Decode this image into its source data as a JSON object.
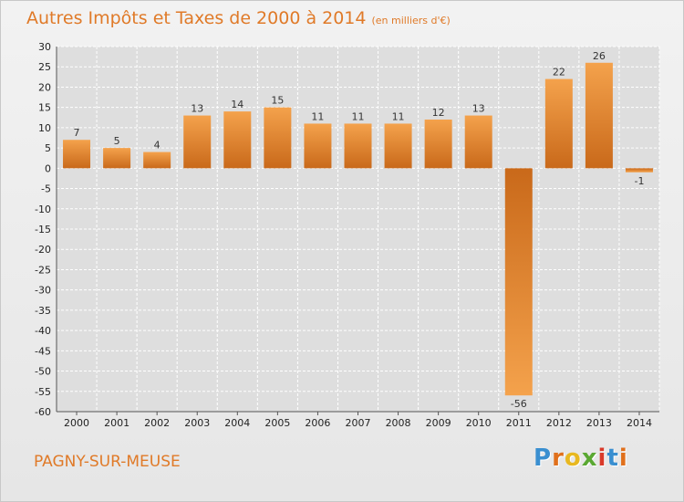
{
  "header": {
    "title": "Autres Impôts et Taxes de 2000 à 2014",
    "unit": "(en milliers d'€)"
  },
  "footer": {
    "commune": "PAGNY-SUR-MEUSE",
    "logo_letters": [
      "P",
      "r",
      "o",
      "x",
      "i",
      "t",
      "i"
    ],
    "logo_colors": [
      "#3a8fd0",
      "#e0701c",
      "#e8b820",
      "#5aa832",
      "#d93a2a",
      "#3a8fd0",
      "#e0701c"
    ]
  },
  "colors": {
    "bar_light": "#f4a24c",
    "bar_dark": "#c9691a",
    "grid": "#ffffff",
    "plot_bg": "#dedede",
    "accent": "#e07a28"
  },
  "chart_data": {
    "type": "bar",
    "categories": [
      "2000",
      "2001",
      "2002",
      "2003",
      "2004",
      "2005",
      "2006",
      "2007",
      "2008",
      "2009",
      "2010",
      "2011",
      "2012",
      "2013",
      "2014"
    ],
    "values": [
      7,
      5,
      4,
      13,
      14,
      15,
      11,
      11,
      11,
      12,
      13,
      -56,
      22,
      26,
      -1
    ],
    "data_labels": [
      "7",
      "5",
      "4",
      "13",
      "14",
      "15",
      "11",
      "11",
      "11",
      "12",
      "13",
      "-56",
      "22",
      "26",
      "-1"
    ],
    "y_ticks": [
      30,
      25,
      20,
      15,
      10,
      5,
      0,
      -5,
      -10,
      -15,
      -20,
      -25,
      -30,
      -35,
      -40,
      -45,
      -50,
      -55,
      -60
    ],
    "ylim": [
      -60,
      30
    ],
    "grid": true
  }
}
